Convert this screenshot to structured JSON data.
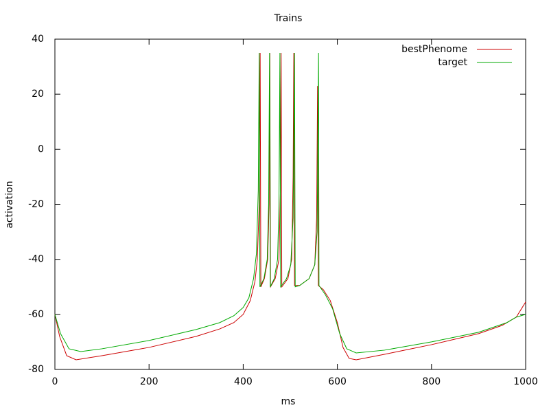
{
  "chart_data": {
    "type": "line",
    "title": "Trains",
    "xlabel": "ms",
    "ylabel": "activation",
    "xlim": [
      0,
      1000
    ],
    "xticks": [
      0,
      200,
      400,
      600,
      800,
      1000
    ],
    "ylim": [
      -80,
      40
    ],
    "yticks": [
      -80,
      -60,
      -40,
      -20,
      0,
      20,
      40
    ],
    "legend": "top right",
    "series": [
      {
        "name": "bestPhenome",
        "color": "#cc0000",
        "x": [
          0,
          10,
          25,
          45,
          100,
          200,
          300,
          350,
          380,
          400,
          415,
          425,
          430,
          434,
          436,
          437.5,
          445,
          452,
          455,
          456.5,
          458,
          468,
          476,
          479,
          480.5,
          482,
          495,
          503,
          506,
          507.5,
          509,
          520,
          540,
          552,
          556,
          558,
          559.5,
          570,
          585,
          600,
          612,
          625,
          640,
          700,
          800,
          900,
          950,
          980,
          1000
        ],
        "values": [
          -60,
          -68,
          -75,
          -76.5,
          -75,
          -72,
          -68,
          -65.3,
          -63,
          -60,
          -55,
          -48,
          -40,
          -20,
          35,
          -50,
          -47,
          -40,
          -20,
          35,
          -50,
          -47,
          -40,
          -15,
          35,
          -50,
          -47,
          -40,
          -10,
          35,
          -49.5,
          -49.5,
          -47,
          -42,
          -25,
          23,
          -49.5,
          -51,
          -55,
          -63,
          -72,
          -76,
          -76.5,
          -74.5,
          -71,
          -67,
          -64,
          -61,
          -55.5
        ]
      },
      {
        "name": "target",
        "color": "#00aa00",
        "x": [
          0,
          12,
          30,
          55,
          100,
          200,
          300,
          350,
          380,
          400,
          412,
          422,
          428,
          432,
          434,
          435.5,
          444,
          451,
          454,
          456,
          457.5,
          466,
          473,
          476,
          478,
          479.5,
          492,
          501,
          506,
          509,
          510.5,
          520,
          540,
          552,
          557,
          560,
          561,
          575,
          590,
          605,
          620,
          640,
          700,
          800,
          900,
          960,
          980,
          1000
        ],
        "values": [
          -60,
          -67,
          -72.5,
          -73.5,
          -72.5,
          -69.5,
          -65.5,
          -63,
          -60.5,
          -57.5,
          -54,
          -47,
          -38,
          -15,
          35,
          -50,
          -47,
          -40,
          -20,
          35,
          -50,
          -47,
          -40,
          -20,
          35,
          -50,
          -47,
          -42,
          -25,
          35,
          -50,
          -49.5,
          -47,
          -42,
          -30,
          35,
          -49.5,
          -53,
          -58,
          -67,
          -72.5,
          -74,
          -73,
          -70,
          -66.5,
          -63,
          -61,
          -60
        ]
      }
    ]
  }
}
